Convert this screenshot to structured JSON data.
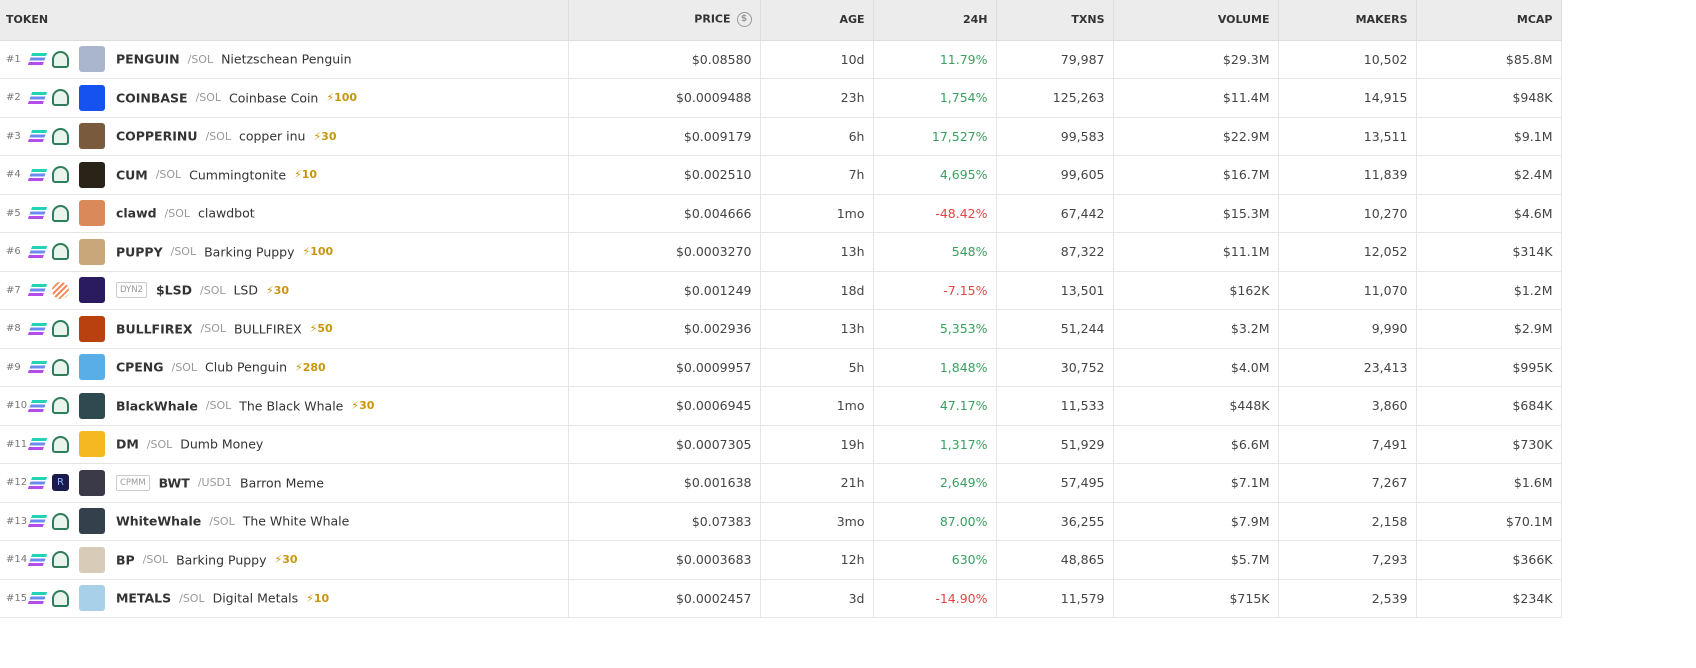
{
  "columns": {
    "token": "TOKEN",
    "price": "PRICE",
    "age": "AGE",
    "change": "24H",
    "txns": "TXNS",
    "volume": "VOLUME",
    "makers": "MAKERS",
    "mcap": "MCAP"
  },
  "price_currency_icon": "$",
  "colors": {
    "up": "#3a9f5f",
    "down": "#e04545",
    "boost": "#c9950c"
  },
  "rows": [
    {
      "rank": "#1",
      "dex": "swap",
      "tag": "",
      "symbol": "PENGUIN",
      "quote": "/SOL",
      "name": "Nietzschean Penguin",
      "boost": "",
      "price": "$0.08580",
      "age": "10d",
      "change": "11.79%",
      "dir": "up",
      "txns": "79,987",
      "volume": "$29.3M",
      "makers": "10,502",
      "mcap": "$85.8M",
      "avatar": "#a9b6cc"
    },
    {
      "rank": "#2",
      "dex": "swap",
      "tag": "",
      "symbol": "COINBASE",
      "quote": "/SOL",
      "name": "Coinbase Coin",
      "boost": "⚡100",
      "price": "$0.0009488",
      "age": "23h",
      "change": "1,754%",
      "dir": "up",
      "txns": "125,263",
      "volume": "$11.4M",
      "makers": "14,915",
      "mcap": "$948K",
      "avatar": "#1652f0"
    },
    {
      "rank": "#3",
      "dex": "swap",
      "tag": "",
      "symbol": "COPPERINU",
      "quote": "/SOL",
      "name": "copper inu",
      "boost": "⚡30",
      "price": "$0.009179",
      "age": "6h",
      "change": "17,527%",
      "dir": "up",
      "txns": "99,583",
      "volume": "$22.9M",
      "makers": "13,511",
      "mcap": "$9.1M",
      "avatar": "#7a5a3c"
    },
    {
      "rank": "#4",
      "dex": "swap",
      "tag": "",
      "symbol": "CUM",
      "quote": "/SOL",
      "name": "Cummingtonite",
      "boost": "⚡10",
      "price": "$0.002510",
      "age": "7h",
      "change": "4,695%",
      "dir": "up",
      "txns": "99,605",
      "volume": "$16.7M",
      "makers": "11,839",
      "mcap": "$2.4M",
      "avatar": "#2a2418"
    },
    {
      "rank": "#5",
      "dex": "swap",
      "tag": "",
      "symbol": "clawd",
      "quote": "/SOL",
      "name": "clawdbot",
      "boost": "",
      "price": "$0.004666",
      "age": "1mo",
      "change": "-48.42%",
      "dir": "down",
      "txns": "67,442",
      "volume": "$15.3M",
      "makers": "10,270",
      "mcap": "$4.6M",
      "avatar": "#d9895a"
    },
    {
      "rank": "#6",
      "dex": "swap",
      "tag": "",
      "symbol": "PUPPY",
      "quote": "/SOL",
      "name": "Barking Puppy",
      "boost": "⚡100",
      "price": "$0.0003270",
      "age": "13h",
      "change": "548%",
      "dir": "up",
      "txns": "87,322",
      "volume": "$11.1M",
      "makers": "12,052",
      "mcap": "$314K",
      "avatar": "#c9a77a"
    },
    {
      "rank": "#7",
      "dex": "orange",
      "tag": "DYN2",
      "symbol": "$LSD",
      "quote": "/SOL",
      "name": "LSD",
      "boost": "⚡30",
      "price": "$0.001249",
      "age": "18d",
      "change": "-7.15%",
      "dir": "down",
      "txns": "13,501",
      "volume": "$162K",
      "makers": "11,070",
      "mcap": "$1.2M",
      "avatar": "#2a1a5e"
    },
    {
      "rank": "#8",
      "dex": "swap",
      "tag": "",
      "symbol": "BULLFIREX",
      "quote": "/SOL",
      "name": "BULLFIREX",
      "boost": "⚡50",
      "price": "$0.002936",
      "age": "13h",
      "change": "5,353%",
      "dir": "up",
      "txns": "51,244",
      "volume": "$3.2M",
      "makers": "9,990",
      "mcap": "$2.9M",
      "avatar": "#b8410f"
    },
    {
      "rank": "#9",
      "dex": "swap",
      "tag": "",
      "symbol": "CPENG",
      "quote": "/SOL",
      "name": "Club Penguin",
      "boost": "⚡280",
      "price": "$0.0009957",
      "age": "5h",
      "change": "1,848%",
      "dir": "up",
      "txns": "30,752",
      "volume": "$4.0M",
      "makers": "23,413",
      "mcap": "$995K",
      "avatar": "#5aaee8"
    },
    {
      "rank": "#10",
      "dex": "swap",
      "tag": "",
      "symbol": "BlackWhale",
      "quote": "/SOL",
      "name": "The Black Whale",
      "boost": "⚡30",
      "price": "$0.0006945",
      "age": "1mo",
      "change": "47.17%",
      "dir": "up",
      "txns": "11,533",
      "volume": "$448K",
      "makers": "3,860",
      "mcap": "$684K",
      "avatar": "#2e4a50"
    },
    {
      "rank": "#11",
      "dex": "swap",
      "tag": "",
      "symbol": "DM",
      "quote": "/SOL",
      "name": "Dumb Money",
      "boost": "",
      "price": "$0.0007305",
      "age": "19h",
      "change": "1,317%",
      "dir": "up",
      "txns": "51,929",
      "volume": "$6.6M",
      "makers": "7,491",
      "mcap": "$730K",
      "avatar": "#f5b820"
    },
    {
      "rank": "#12",
      "dex": "ray",
      "tag": "CPMM",
      "symbol": "BWT",
      "quote": "/USD1",
      "name": "Barron Meme",
      "boost": "",
      "price": "$0.001638",
      "age": "21h",
      "change": "2,649%",
      "dir": "up",
      "txns": "57,495",
      "volume": "$7.1M",
      "makers": "7,267",
      "mcap": "$1.6M",
      "avatar": "#3a3a48"
    },
    {
      "rank": "#13",
      "dex": "swap",
      "tag": "",
      "symbol": "WhiteWhale",
      "quote": "/SOL",
      "name": "The White Whale",
      "boost": "",
      "price": "$0.07383",
      "age": "3mo",
      "change": "87.00%",
      "dir": "up",
      "txns": "36,255",
      "volume": "$7.9M",
      "makers": "2,158",
      "mcap": "$70.1M",
      "avatar": "#34404c"
    },
    {
      "rank": "#14",
      "dex": "swap",
      "tag": "",
      "symbol": "BP",
      "quote": "/SOL",
      "name": "Barking Puppy",
      "boost": "⚡30",
      "price": "$0.0003683",
      "age": "12h",
      "change": "630%",
      "dir": "up",
      "txns": "48,865",
      "volume": "$5.7M",
      "makers": "7,293",
      "mcap": "$366K",
      "avatar": "#d8cbb8"
    },
    {
      "rank": "#15",
      "dex": "swap",
      "tag": "",
      "symbol": "METALS",
      "quote": "/SOL",
      "name": "Digital Metals",
      "boost": "⚡10",
      "price": "$0.0002457",
      "age": "3d",
      "change": "-14.90%",
      "dir": "down",
      "txns": "11,579",
      "volume": "$715K",
      "makers": "2,539",
      "mcap": "$234K",
      "avatar": "#a8d0e8"
    }
  ]
}
